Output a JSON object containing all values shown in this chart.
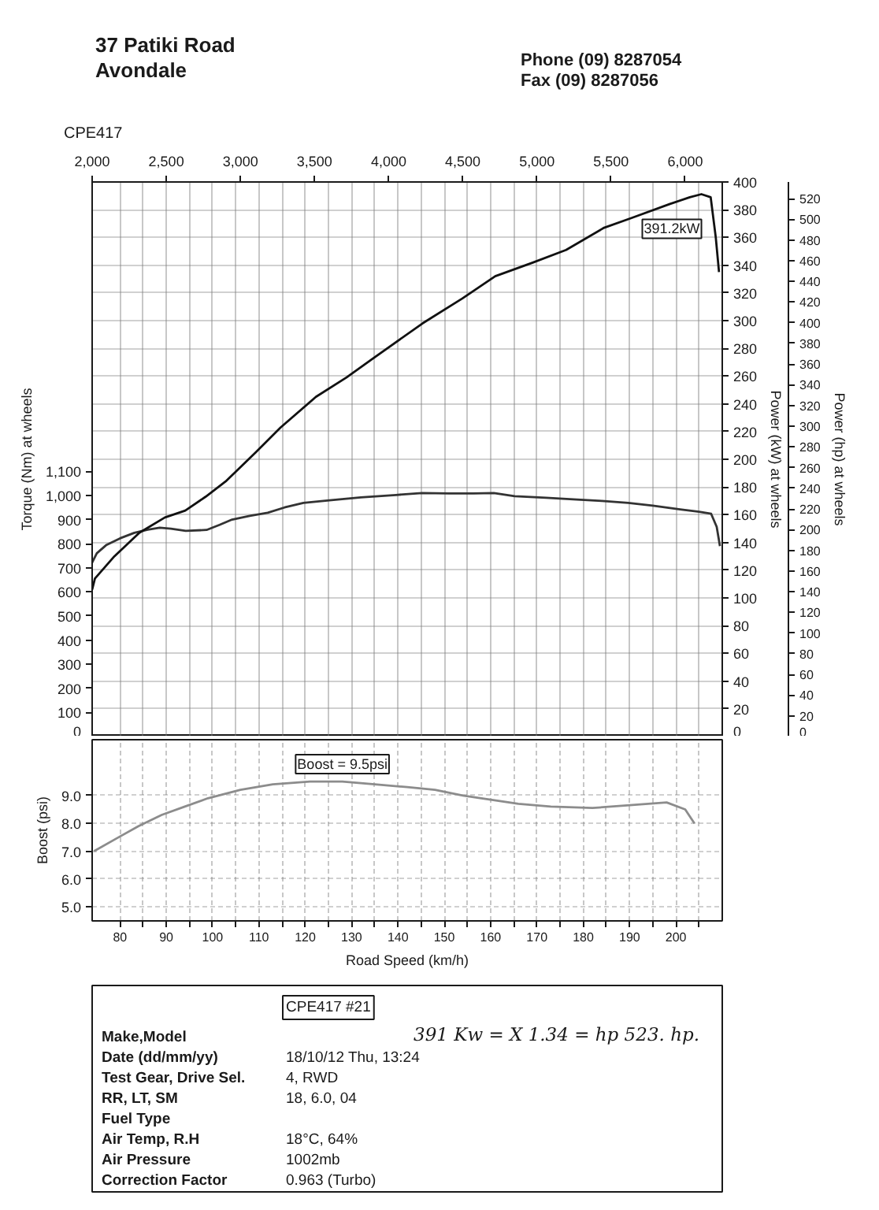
{
  "chart_data": [
    {
      "type": "other",
      "annotations": [
        "37 Patiki Road",
        "Avondale",
        "Phone (09) 8287054",
        "Fax (09) 8287056"
      ]
    },
    {
      "type": "line",
      "title": "CPE417",
      "ylabel": "Torque (Nm) at wheels",
      "y2label": "Power (kW) at wheels",
      "y3label": "Power (hp) at wheels",
      "xlim": [
        74,
        210
      ],
      "xticks": [
        80,
        {
          "value": 85,
          "label": null
        },
        90,
        {
          "value": 95,
          "label": null
        },
        100,
        {
          "value": 105,
          "label": null
        },
        110,
        {
          "value": 115,
          "label": null
        },
        120,
        {
          "value": 125,
          "label": null
        },
        130,
        {
          "value": 135,
          "label": null
        },
        140,
        {
          "value": 145,
          "label": null
        },
        150,
        {
          "value": 155,
          "label": null
        },
        160,
        {
          "value": 165,
          "label": null
        },
        170,
        {
          "value": 175,
          "label": null
        },
        180,
        {
          "value": 185,
          "label": null
        },
        190,
        {
          "value": 195,
          "label": null
        },
        200,
        {
          "value": 205,
          "label": null
        }
      ],
      "x2lim": [
        2000,
        6250
      ],
      "x2ticks": [
        {
          "value": 2000,
          "label": "2,000"
        },
        {
          "value": 2500,
          "label": "2,500"
        },
        {
          "value": 3000,
          "label": "3,000"
        },
        {
          "value": 3500,
          "label": "3,500"
        },
        {
          "value": 4000,
          "label": "4,000"
        },
        {
          "value": 4500,
          "label": "4,500"
        },
        {
          "value": 5000,
          "label": "5,000"
        },
        {
          "value": 5500,
          "label": "5,500"
        },
        {
          "value": 6000,
          "label": "6,000"
        }
      ],
      "ylim": [
        0,
        2300
      ],
      "yticks": [
        0,
        100,
        200,
        300,
        400,
        500,
        600,
        700,
        800,
        900,
        {
          "value": 1000,
          "label": "1,000"
        },
        {
          "value": 1100,
          "label": "1,100"
        }
      ],
      "y2lim": [
        0,
        400
      ],
      "y2ticks": [
        0,
        20,
        40,
        60,
        80,
        100,
        120,
        140,
        160,
        180,
        200,
        220,
        240,
        260,
        280,
        300,
        320,
        340,
        360,
        380,
        400
      ],
      "y3lim": [
        0,
        536
      ],
      "y3ticks": [
        0,
        20,
        40,
        60,
        80,
        100,
        120,
        140,
        160,
        180,
        200,
        220,
        240,
        260,
        280,
        300,
        320,
        340,
        360,
        380,
        400,
        420,
        440,
        460,
        480,
        500,
        520
      ],
      "grid": true,
      "tick_labels": "y",
      "series": [
        {
          "color": "#333333",
          "x": [
            74.0,
            75.0,
            77.1,
            80.0,
            83.1,
            86.0,
            88.6,
            91.0,
            94.2,
            98.7,
            101.5,
            104.2,
            108.0,
            111.9,
            115.5,
            119.6,
            125.2,
            132.0,
            139.6,
            145.2,
            151.0,
            156.3,
            160.7,
            165.2,
            172.0,
            178.6,
            184.0,
            189.7,
            195.0,
            200.9,
            205.0,
            207.6,
            208.8,
            209.5
          ],
          "values": [
            722,
            760,
            795,
            822,
            845,
            858,
            866,
            862,
            853,
            857,
            878,
            900,
            915,
            928,
            950,
            969,
            980,
            992,
            1002,
            1010,
            1008,
            1008,
            1010,
            997,
            990,
            983,
            977,
            969,
            958,
            942,
            932,
            924,
            870,
            790
          ]
        },
        {
          "axis": "y2",
          "color": "#111111",
          "x": [
            74.0,
            74.6,
            78.8,
            84.2,
            89.7,
            94.1,
            98.5,
            102.8,
            109.3,
            114.7,
            122.3,
            128.9,
            134.3,
            145.3,
            153.9,
            161.0,
            169.2,
            176.3,
            184.5,
            190.4,
            198.6,
            203.0,
            205.5,
            207.5,
            208.6,
            209.3
          ],
          "values": [
            106,
            114,
            130,
            147,
            158,
            163,
            173,
            184,
            205,
            223,
            245,
            259,
            272,
            298,
            316,
            332,
            342,
            351,
            367,
            374,
            384,
            389,
            391.2,
            389,
            360,
            335
          ],
          "value_labels": [
            null,
            null,
            null,
            null,
            null,
            null,
            null,
            null,
            null,
            null,
            null,
            null,
            null,
            null,
            null,
            null,
            null,
            null,
            null,
            null,
            null,
            null,
            "391.2kW",
            null,
            null,
            null
          ]
        }
      ]
    },
    {
      "type": "line",
      "xlabel": "Road Speed (km/h)",
      "ylabel": "Boost (psi)",
      "xlim": [
        74,
        210
      ],
      "xticks": [
        80,
        {
          "value": 85,
          "label": null
        },
        90,
        {
          "value": 95,
          "label": null
        },
        100,
        {
          "value": 105,
          "label": null
        },
        110,
        {
          "value": 115,
          "label": null
        },
        120,
        {
          "value": 125,
          "label": null
        },
        130,
        {
          "value": 135,
          "label": null
        },
        140,
        {
          "value": 145,
          "label": null
        },
        150,
        {
          "value": 155,
          "label": null
        },
        160,
        {
          "value": 165,
          "label": null
        },
        170,
        {
          "value": 175,
          "label": null
        },
        180,
        {
          "value": 185,
          "label": null
        },
        190,
        {
          "value": 195,
          "label": null
        },
        200,
        {
          "value": 205,
          "label": null
        }
      ],
      "ylim": [
        4.5,
        11
      ],
      "yticks": [
        {
          "value": 5,
          "label": "5.0"
        },
        {
          "value": 6,
          "label": "6.0"
        },
        {
          "value": 7,
          "label": "7.0"
        },
        {
          "value": 8,
          "label": "8.0"
        },
        {
          "value": 9,
          "label": "9.0"
        }
      ],
      "grid": true,
      "series": [
        {
          "color": "#8c8c8c",
          "x": [
            74.4,
            79.7,
            84.0,
            89.0,
            94.0,
            99.0,
            106.0,
            113.0,
            121.0,
            128.0,
            135.0,
            142.0,
            148.0,
            154.0,
            160.0,
            166.0,
            173.0,
            182.0,
            190.0,
            198.0,
            202.0,
            204.0
          ],
          "values": [
            7.0,
            7.5,
            7.9,
            8.3,
            8.6,
            8.9,
            9.2,
            9.4,
            9.5,
            9.5,
            9.4,
            9.3,
            9.2,
            9.0,
            8.85,
            8.7,
            8.6,
            8.55,
            8.65,
            8.75,
            8.5,
            8.0
          ],
          "value_labels": [
            null,
            null,
            null,
            null,
            null,
            null,
            null,
            null,
            null,
            "Boost = 9.5psi",
            null,
            null,
            null,
            null,
            null,
            null,
            null,
            null,
            null,
            null,
            null,
            null
          ]
        }
      ]
    },
    {
      "type": "other",
      "title": "CPE417 #21",
      "y_categories": [
        "Make,Model",
        "Date (dd/mm/yy)",
        "Test Gear, Drive Sel.",
        "RR, LT, SM",
        "Fuel Type",
        "Air Temp, R.H",
        "Air Pressure",
        "Correction Factor"
      ],
      "cell_labels": [
        [
          null
        ],
        [
          "18/10/12 Thu, 13:24"
        ],
        [
          "4, RWD"
        ],
        [
          "18, 6.0, 04"
        ],
        [
          null
        ],
        [
          "18°C, 64%"
        ],
        [
          "1002mb"
        ],
        [
          "0.963 (Turbo)"
        ]
      ],
      "annotations": [
        "391 Kw = X 1.34 = hp 523. hp."
      ]
    }
  ]
}
